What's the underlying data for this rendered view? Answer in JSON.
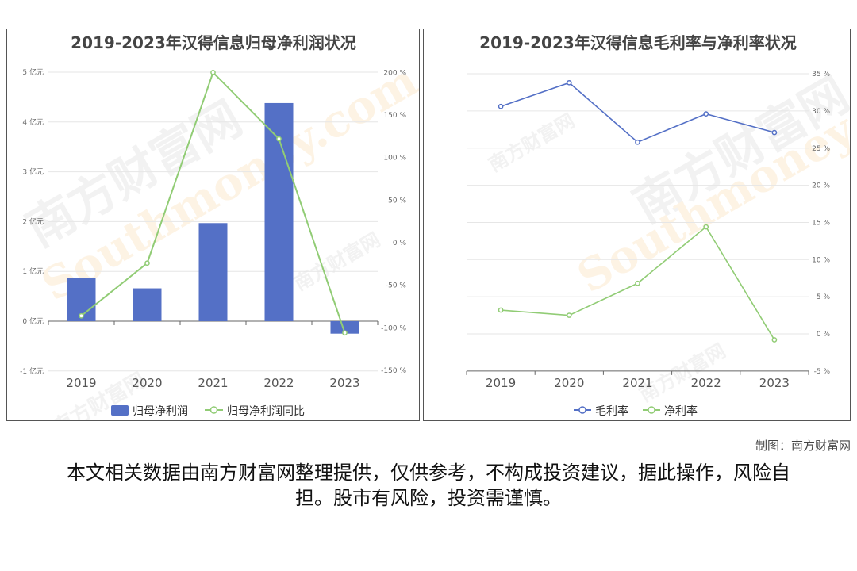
{
  "chart_data": [
    {
      "type": "bar",
      "title": "2019-2023年汉得信息归母净利润状况",
      "categories": [
        "2019",
        "2020",
        "2021",
        "2022",
        "2023"
      ],
      "series": [
        {
          "name": "归母净利润",
          "type": "bar",
          "axis": "left",
          "color": "#5470c6",
          "values": [
            0.86,
            0.66,
            1.97,
            4.38,
            -0.25
          ]
        },
        {
          "name": "归母净利润同比",
          "type": "line",
          "axis": "right",
          "color": "#91cc75",
          "values": [
            -86,
            -24,
            200,
            122,
            -106
          ]
        }
      ],
      "y_left": {
        "ticks": [
          "-1 亿元",
          "0 亿元",
          "1 亿元",
          "2 亿元",
          "3 亿元",
          "4 亿元",
          "5 亿元"
        ],
        "min": -1,
        "max": 5
      },
      "y_right": {
        "ticks": [
          "-150 %",
          "-100 %",
          "-50 %",
          "0 %",
          "50 %",
          "100 %",
          "150 %",
          "200 %"
        ],
        "min": -150,
        "max": 200
      },
      "legend": "bottom",
      "grid": true
    },
    {
      "type": "line",
      "title": "2019-2023年汉得信息毛利率与净利率状况",
      "categories": [
        "2019",
        "2020",
        "2021",
        "2022",
        "2023"
      ],
      "series": [
        {
          "name": "毛利率",
          "color": "#5470c6",
          "values": [
            30.6,
            33.8,
            25.8,
            29.6,
            27.1
          ]
        },
        {
          "name": "净利率",
          "color": "#91cc75",
          "values": [
            3.2,
            2.5,
            6.8,
            14.4,
            -0.8
          ]
        }
      ],
      "y_right": {
        "ticks": [
          "-5 %",
          "0 %",
          "5 %",
          "10 %",
          "15 %",
          "20 %",
          "25 %",
          "30 %",
          "35 %"
        ],
        "min": -5,
        "max": 35
      },
      "legend": "bottom",
      "grid": true
    }
  ],
  "watermark": {
    "cn": "南方财富网",
    "en": "Southmoney.com"
  },
  "credit": "制图：南方财富网",
  "disclaimer": "本文相关数据由南方财富网整理提供，仅供参考，不构成投资建议，据此操作，风险自担。股市有风险，投资需谨慎。"
}
